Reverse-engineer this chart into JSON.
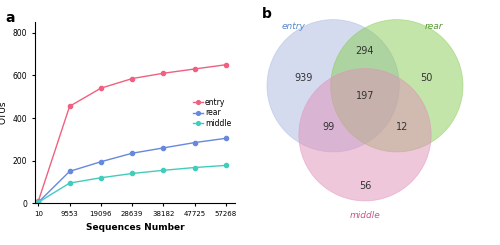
{
  "panel_a": {
    "x": [
      10,
      9553,
      19096,
      28639,
      38182,
      47725,
      57268
    ],
    "entry": [
      10,
      455,
      540,
      585,
      610,
      630,
      650
    ],
    "rear": [
      5,
      150,
      195,
      235,
      260,
      285,
      305
    ],
    "middle": [
      5,
      95,
      120,
      140,
      155,
      168,
      178
    ],
    "entry_color": "#f06080",
    "rear_color": "#6688dd",
    "middle_color": "#44ccbb",
    "xlabel": "Sequences Number",
    "ylabel": "OTUs",
    "yticks": [
      0,
      200,
      400,
      600,
      800
    ],
    "ylim": [
      0,
      850
    ],
    "label_a": "a"
  },
  "panel_b": {
    "entry_label": "entry",
    "rear_label": "rear",
    "middle_label": "middle",
    "entry_color": "#aab8e0",
    "rear_color": "#88cc55",
    "middle_color": "#e090b8",
    "entry_only": 939,
    "rear_only": 50,
    "middle_only": 56,
    "entry_rear": 294,
    "entry_middle": 99,
    "rear_middle": 12,
    "all_three": 197,
    "entry_text_color": "#5588cc",
    "rear_text_color": "#559933",
    "middle_text_color": "#cc5588",
    "number_color": "#333333",
    "label_b": "b"
  }
}
